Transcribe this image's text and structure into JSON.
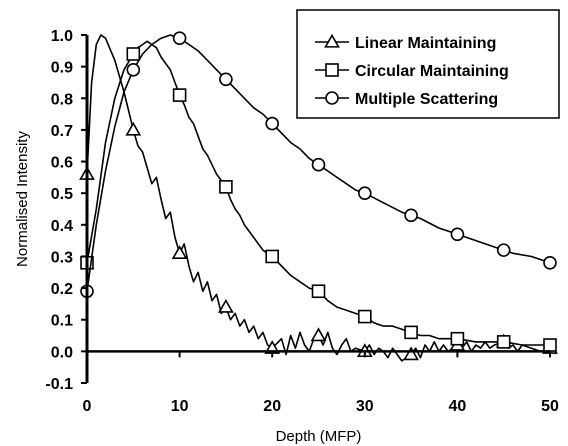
{
  "chart_data": {
    "type": "line",
    "title": "",
    "xlabel": "Depth (MFP)",
    "ylabel": "Normalised Intensity",
    "xlim": [
      0,
      50
    ],
    "ylim": [
      -0.1,
      1.0
    ],
    "x_ticks": [
      "0",
      "10",
      "20",
      "30",
      "40",
      "50"
    ],
    "y_ticks": [
      "-0.1",
      "0.0",
      "0.1",
      "0.2",
      "0.3",
      "0.4",
      "0.5",
      "0.6",
      "0.7",
      "0.8",
      "0.9",
      "1.0"
    ],
    "grid": false,
    "legend_position": "top-right",
    "series": [
      {
        "name": "Linear Maintaining",
        "marker": "triangle",
        "markers": [
          [
            0,
            0.56
          ],
          [
            5,
            0.7
          ],
          [
            10,
            0.31
          ],
          [
            15,
            0.14
          ],
          [
            20,
            0.01
          ],
          [
            25,
            0.05
          ],
          [
            30,
            0.0
          ],
          [
            35,
            -0.01
          ],
          [
            40,
            0.02
          ],
          [
            45,
            0.03
          ],
          [
            50,
            0.01
          ]
        ],
        "line": [
          [
            0,
            0.56
          ],
          [
            0.5,
            0.85
          ],
          [
            1.0,
            0.97
          ],
          [
            1.5,
            1.0
          ],
          [
            2.0,
            0.99
          ],
          [
            3.0,
            0.92
          ],
          [
            4.0,
            0.82
          ],
          [
            5.0,
            0.7
          ],
          [
            5.5,
            0.65
          ],
          [
            6.0,
            0.63
          ],
          [
            6.5,
            0.58
          ],
          [
            7.0,
            0.53
          ],
          [
            7.5,
            0.55
          ],
          [
            8.0,
            0.48
          ],
          [
            8.5,
            0.42
          ],
          [
            9.0,
            0.44
          ],
          [
            9.5,
            0.36
          ],
          [
            10.0,
            0.31
          ],
          [
            10.5,
            0.34
          ],
          [
            11.0,
            0.27
          ],
          [
            11.5,
            0.22
          ],
          [
            12.0,
            0.25
          ],
          [
            12.5,
            0.19
          ],
          [
            13.0,
            0.22
          ],
          [
            13.5,
            0.16
          ],
          [
            14.0,
            0.18
          ],
          [
            14.5,
            0.12
          ],
          [
            15.0,
            0.14
          ],
          [
            15.5,
            0.1
          ],
          [
            16.0,
            0.12
          ],
          [
            16.5,
            0.08
          ],
          [
            17.0,
            0.1
          ],
          [
            17.5,
            0.06
          ],
          [
            18.0,
            0.08
          ],
          [
            18.5,
            0.04
          ],
          [
            19.0,
            0.06
          ],
          [
            19.5,
            0.02
          ],
          [
            20.0,
            0.01
          ],
          [
            21.0,
            0.04
          ],
          [
            21.5,
            -0.01
          ],
          [
            22.0,
            0.05
          ],
          [
            22.5,
            0.01
          ],
          [
            23.0,
            0.06
          ],
          [
            23.5,
            0.02
          ],
          [
            24.0,
            0.0
          ],
          [
            24.5,
            0.04
          ],
          [
            25.0,
            0.05
          ],
          [
            25.5,
            0.02
          ],
          [
            26.0,
            0.06
          ],
          [
            26.5,
            0.01
          ],
          [
            27.0,
            -0.01
          ],
          [
            27.5,
            0.02
          ],
          [
            28.0,
            0.04
          ],
          [
            28.5,
            0.0
          ],
          [
            29.0,
            0.01
          ],
          [
            30.0,
            0.0
          ],
          [
            30.5,
            0.02
          ],
          [
            31.0,
            -0.01
          ],
          [
            31.5,
            0.01
          ],
          [
            32.0,
            0.0
          ],
          [
            32.5,
            -0.02
          ],
          [
            33.0,
            0.01
          ],
          [
            33.5,
            -0.01
          ],
          [
            34.0,
            -0.03
          ],
          [
            35.0,
            -0.01
          ],
          [
            35.5,
            0.01
          ],
          [
            36.0,
            -0.02
          ],
          [
            36.5,
            0.02
          ],
          [
            37.0,
            0.0
          ],
          [
            37.5,
            0.03
          ],
          [
            38.0,
            0.0
          ],
          [
            38.5,
            0.02
          ],
          [
            39.0,
            0.0
          ],
          [
            40.0,
            0.02
          ],
          [
            40.5,
            0.01
          ],
          [
            41.0,
            0.03
          ],
          [
            41.5,
            0.0
          ],
          [
            42.0,
            0.02
          ],
          [
            42.5,
            0.01
          ],
          [
            43.0,
            0.03
          ],
          [
            43.5,
            0.01
          ],
          [
            44.0,
            0.02
          ],
          [
            45.0,
            0.03
          ],
          [
            45.5,
            0.01
          ],
          [
            46.0,
            0.02
          ],
          [
            46.5,
            0.0
          ],
          [
            47.0,
            0.02
          ],
          [
            48.0,
            0.01
          ],
          [
            49.0,
            0.0
          ],
          [
            50.0,
            0.01
          ]
        ]
      },
      {
        "name": "Circular Maintaining",
        "marker": "square",
        "markers": [
          [
            0,
            0.28
          ],
          [
            5,
            0.94
          ],
          [
            10,
            0.81
          ],
          [
            15,
            0.52
          ],
          [
            20,
            0.3
          ],
          [
            25,
            0.19
          ],
          [
            30,
            0.11
          ],
          [
            35,
            0.06
          ],
          [
            40,
            0.04
          ],
          [
            45,
            0.03
          ],
          [
            50,
            0.02
          ]
        ],
        "line": [
          [
            0,
            0.28
          ],
          [
            1.0,
            0.45
          ],
          [
            2.0,
            0.66
          ],
          [
            3.0,
            0.8
          ],
          [
            4.0,
            0.89
          ],
          [
            5.0,
            0.94
          ],
          [
            5.5,
            0.96
          ],
          [
            6.0,
            0.97
          ],
          [
            6.5,
            0.98
          ],
          [
            7.0,
            0.97
          ],
          [
            7.5,
            0.96
          ],
          [
            8.0,
            0.93
          ],
          [
            8.5,
            0.91
          ],
          [
            9.0,
            0.89
          ],
          [
            9.5,
            0.85
          ],
          [
            10.0,
            0.81
          ],
          [
            10.5,
            0.78
          ],
          [
            11.0,
            0.74
          ],
          [
            11.5,
            0.72
          ],
          [
            12.0,
            0.68
          ],
          [
            12.5,
            0.64
          ],
          [
            13.0,
            0.62
          ],
          [
            13.5,
            0.59
          ],
          [
            14.0,
            0.56
          ],
          [
            14.5,
            0.54
          ],
          [
            15.0,
            0.52
          ],
          [
            15.5,
            0.48
          ],
          [
            16.0,
            0.45
          ],
          [
            16.5,
            0.43
          ],
          [
            17.0,
            0.4
          ],
          [
            17.5,
            0.38
          ],
          [
            18.0,
            0.36
          ],
          [
            18.5,
            0.34
          ],
          [
            19.0,
            0.32
          ],
          [
            19.5,
            0.31
          ],
          [
            20.0,
            0.3
          ],
          [
            21.0,
            0.27
          ],
          [
            22.0,
            0.24
          ],
          [
            23.0,
            0.22
          ],
          [
            24.0,
            0.2
          ],
          [
            25.0,
            0.19
          ],
          [
            26.0,
            0.16
          ],
          [
            27.0,
            0.14
          ],
          [
            28.0,
            0.13
          ],
          [
            29.0,
            0.12
          ],
          [
            30.0,
            0.11
          ],
          [
            31.0,
            0.09
          ],
          [
            32.0,
            0.08
          ],
          [
            33.0,
            0.08
          ],
          [
            34.0,
            0.07
          ],
          [
            35.0,
            0.06
          ],
          [
            36.0,
            0.05
          ],
          [
            37.0,
            0.05
          ],
          [
            38.0,
            0.04
          ],
          [
            39.0,
            0.04
          ],
          [
            40.0,
            0.04
          ],
          [
            42.0,
            0.03
          ],
          [
            44.0,
            0.03
          ],
          [
            45.0,
            0.03
          ],
          [
            47.0,
            0.02
          ],
          [
            50.0,
            0.02
          ]
        ]
      },
      {
        "name": "Multiple Scattering",
        "marker": "circle",
        "markers": [
          [
            0,
            0.19
          ],
          [
            5,
            0.89
          ],
          [
            10,
            0.99
          ],
          [
            15,
            0.86
          ],
          [
            20,
            0.72
          ],
          [
            25,
            0.59
          ],
          [
            30,
            0.5
          ],
          [
            35,
            0.43
          ],
          [
            40,
            0.37
          ],
          [
            45,
            0.32
          ],
          [
            50,
            0.28
          ]
        ],
        "line": [
          [
            0,
            0.19
          ],
          [
            1.0,
            0.4
          ],
          [
            2.0,
            0.57
          ],
          [
            3.0,
            0.71
          ],
          [
            4.0,
            0.82
          ],
          [
            5.0,
            0.89
          ],
          [
            6.0,
            0.94
          ],
          [
            7.0,
            0.97
          ],
          [
            8.0,
            0.99
          ],
          [
            9.0,
            1.0
          ],
          [
            10.0,
            0.99
          ],
          [
            11.0,
            0.97
          ],
          [
            12.0,
            0.95
          ],
          [
            13.0,
            0.92
          ],
          [
            14.0,
            0.89
          ],
          [
            15.0,
            0.86
          ],
          [
            16.0,
            0.83
          ],
          [
            17.0,
            0.8
          ],
          [
            18.0,
            0.77
          ],
          [
            19.0,
            0.75
          ],
          [
            20.0,
            0.72
          ],
          [
            21.0,
            0.69
          ],
          [
            22.0,
            0.66
          ],
          [
            23.0,
            0.64
          ],
          [
            24.0,
            0.61
          ],
          [
            25.0,
            0.59
          ],
          [
            26.0,
            0.57
          ],
          [
            27.0,
            0.55
          ],
          [
            28.0,
            0.53
          ],
          [
            29.0,
            0.51
          ],
          [
            30.0,
            0.5
          ],
          [
            32.0,
            0.47
          ],
          [
            34.0,
            0.44
          ],
          [
            35.0,
            0.43
          ],
          [
            36.0,
            0.42
          ],
          [
            38.0,
            0.39
          ],
          [
            40.0,
            0.37
          ],
          [
            42.0,
            0.35
          ],
          [
            44.0,
            0.33
          ],
          [
            45.0,
            0.32
          ],
          [
            46.0,
            0.31
          ],
          [
            48.0,
            0.3
          ],
          [
            50.0,
            0.28
          ]
        ]
      }
    ]
  }
}
